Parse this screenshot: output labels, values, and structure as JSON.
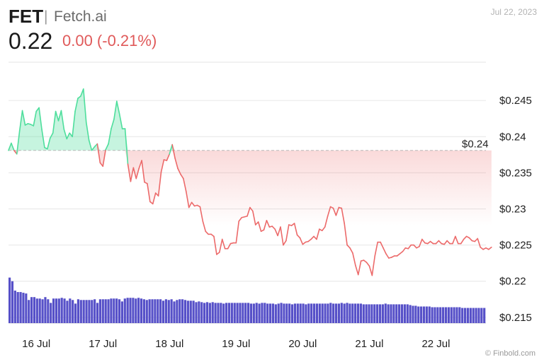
{
  "header": {
    "symbol": "FET",
    "separator": "|",
    "name": "Fetch.ai",
    "date": "Jul 22, 2023",
    "price": "0.22",
    "change": "0.00 (-0.21%)"
  },
  "credit": "© Finbold.com",
  "colors": {
    "up": "#4ede9c",
    "down": "#ec6a6a",
    "volume": "#5650c8",
    "grid": "#e6e6e6"
  },
  "chart_data": {
    "type": "line",
    "reference": {
      "value": 0.2381,
      "label": "$0.24"
    },
    "ylim": [
      0.2142,
      0.2503
    ],
    "yticks": [
      {
        "value": 0.245,
        "label": "$0.245"
      },
      {
        "value": 0.24,
        "label": "$0.24"
      },
      {
        "value": 0.235,
        "label": "$0.235"
      },
      {
        "value": 0.23,
        "label": "$0.23"
      },
      {
        "value": 0.225,
        "label": "$0.225"
      },
      {
        "value": 0.22,
        "label": "$0.22"
      },
      {
        "value": 0.215,
        "label": "$0.215"
      }
    ],
    "xlim": [
      0,
      172
    ],
    "xticks": [
      {
        "x": 10,
        "label": "16 Jul"
      },
      {
        "x": 34,
        "label": "17 Jul"
      },
      {
        "x": 58,
        "label": "18 Jul"
      },
      {
        "x": 82,
        "label": "19 Jul"
      },
      {
        "x": 106,
        "label": "20 Jul"
      },
      {
        "x": 130,
        "label": "21 Jul"
      },
      {
        "x": 154,
        "label": "22 Jul"
      }
    ],
    "price": [
      0.2381,
      0.2391,
      0.2381,
      0.2376,
      0.2408,
      0.2436,
      0.2416,
      0.2418,
      0.2417,
      0.2415,
      0.2435,
      0.244,
      0.241,
      0.2385,
      0.2383,
      0.2398,
      0.2405,
      0.2435,
      0.2422,
      0.2436,
      0.241,
      0.2397,
      0.2405,
      0.24,
      0.2435,
      0.2453,
      0.2456,
      0.2466,
      0.242,
      0.2395,
      0.2381,
      0.2386,
      0.239,
      0.2364,
      0.2359,
      0.2382,
      0.239,
      0.2411,
      0.2424,
      0.2449,
      0.2431,
      0.2411,
      0.2411,
      0.2362,
      0.2338,
      0.2357,
      0.2342,
      0.2356,
      0.2367,
      0.2337,
      0.2335,
      0.231,
      0.2307,
      0.2322,
      0.2318,
      0.2351,
      0.2368,
      0.2367,
      0.2376,
      0.2389,
      0.237,
      0.2356,
      0.2348,
      0.2342,
      0.2324,
      0.2302,
      0.2309,
      0.2304,
      0.2305,
      0.2303,
      0.2283,
      0.2269,
      0.2265,
      0.2265,
      0.2262,
      0.2237,
      0.224,
      0.2258,
      0.2245,
      0.2245,
      0.2252,
      0.2253,
      0.2253,
      0.2283,
      0.2288,
      0.2289,
      0.229,
      0.2302,
      0.2297,
      0.2278,
      0.2282,
      0.2269,
      0.2271,
      0.2284,
      0.2275,
      0.2276,
      0.2272,
      0.2263,
      0.2275,
      0.225,
      0.2256,
      0.2278,
      0.2277,
      0.228,
      0.2264,
      0.226,
      0.2251,
      0.2254,
      0.2255,
      0.2258,
      0.2262,
      0.2258,
      0.2272,
      0.227,
      0.2275,
      0.229,
      0.2303,
      0.2301,
      0.2291,
      0.2302,
      0.2301,
      0.228,
      0.225,
      0.2246,
      0.2239,
      0.2222,
      0.2209,
      0.2228,
      0.2229,
      0.2226,
      0.2221,
      0.2208,
      0.2235,
      0.2254,
      0.2254,
      0.2246,
      0.2238,
      0.2232,
      0.2233,
      0.2235,
      0.2235,
      0.2238,
      0.2241,
      0.2246,
      0.2245,
      0.225,
      0.225,
      0.2246,
      0.2248,
      0.2258,
      0.2253,
      0.2252,
      0.2255,
      0.2252,
      0.2252,
      0.2256,
      0.2252,
      0.2251,
      0.2256,
      0.2252,
      0.2252,
      0.2262,
      0.2252,
      0.2252,
      0.2258,
      0.2262,
      0.226,
      0.2256,
      0.2255,
      0.2259,
      0.2247,
      0.2244,
      0.2246,
      0.2244,
      0.2247
    ],
    "volume": [
      0.2205,
      0.22,
      0.2187,
      0.2185,
      0.2185,
      0.2184,
      0.2183,
      0.2174,
      0.2178,
      0.2178,
      0.2176,
      0.2176,
      0.2175,
      0.2178,
      0.2175,
      0.217,
      0.2176,
      0.2176,
      0.2176,
      0.2177,
      0.2176,
      0.2173,
      0.2176,
      0.2174,
      0.2169,
      0.2175,
      0.2174,
      0.2174,
      0.2174,
      0.2174,
      0.2174,
      0.2175,
      0.217,
      0.2175,
      0.2175,
      0.2175,
      0.2175,
      0.2176,
      0.2176,
      0.2176,
      0.2175,
      0.2172,
      0.2176,
      0.2177,
      0.2177,
      0.2177,
      0.2176,
      0.2177,
      0.2176,
      0.2175,
      0.2174,
      0.2175,
      0.2175,
      0.2175,
      0.2175,
      0.2175,
      0.2173,
      0.2175,
      0.2174,
      0.2175,
      0.2172,
      0.2174,
      0.2175,
      0.2175,
      0.2174,
      0.2173,
      0.2173,
      0.2173,
      0.2171,
      0.2172,
      0.2171,
      0.217,
      0.2171,
      0.217,
      0.2171,
      0.217,
      0.217,
      0.217,
      0.2169,
      0.217,
      0.217,
      0.217,
      0.217,
      0.217,
      0.217,
      0.217,
      0.217,
      0.217,
      0.2169,
      0.2169,
      0.217,
      0.2169,
      0.217,
      0.217,
      0.2169,
      0.2169,
      0.2169,
      0.2168,
      0.2169,
      0.217,
      0.2169,
      0.2169,
      0.2169,
      0.2168,
      0.2169,
      0.2169,
      0.2169,
      0.2169,
      0.2168,
      0.2169,
      0.2169,
      0.2169,
      0.2169,
      0.2169,
      0.2169,
      0.2169,
      0.2169,
      0.217,
      0.2169,
      0.2169,
      0.2169,
      0.217,
      0.2169,
      0.217,
      0.2169,
      0.2169,
      0.2169,
      0.2169,
      0.2169,
      0.2168,
      0.2168,
      0.2168,
      0.2168,
      0.2168,
      0.2168,
      0.2168,
      0.2168,
      0.2169,
      0.2168,
      0.2168,
      0.2168,
      0.2168,
      0.2168,
      0.2168,
      0.2168,
      0.2168,
      0.2167,
      0.2166,
      0.2166,
      0.2165,
      0.2165,
      0.2165,
      0.2165,
      0.2165,
      0.2164,
      0.2164,
      0.2164,
      0.2164,
      0.2164,
      0.2164,
      0.2164,
      0.2164,
      0.2164,
      0.2164,
      0.2164,
      0.2163,
      0.2163,
      0.2163,
      0.2163,
      0.2163,
      0.2163,
      0.2163,
      0.2163,
      0.2163
    ]
  }
}
